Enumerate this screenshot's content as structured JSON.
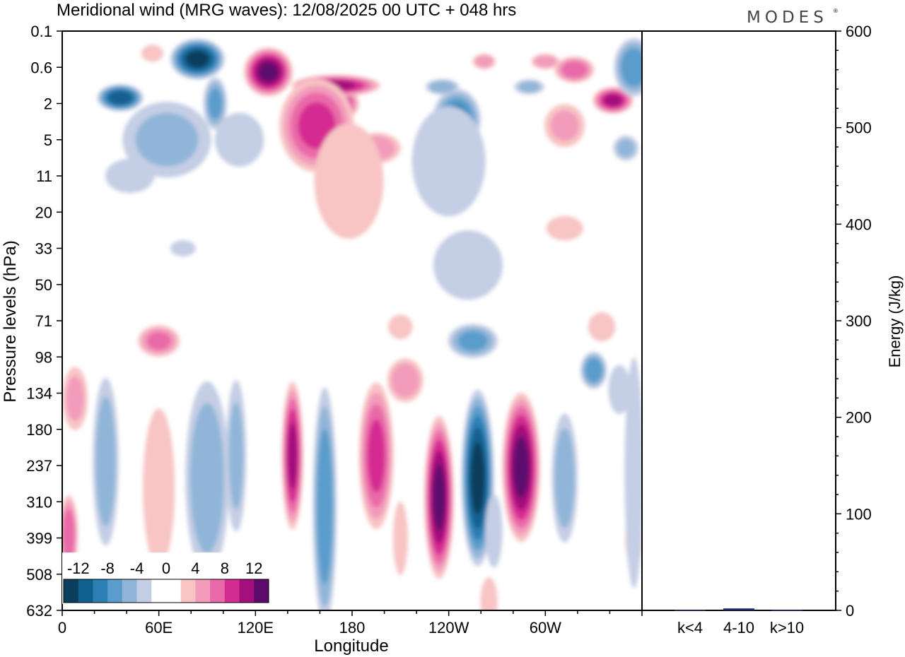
{
  "chart_data": {
    "type": "heatmap",
    "title": "Meridional wind (MRG waves):  12/08/2025  00 UTC  + 048 hrs",
    "logo": "MODES",
    "xlabel": "Longitude",
    "ylabel": "Pressure levels (hPa)",
    "x_ticks": [
      "0",
      "60E",
      "120E",
      "180",
      "120W",
      "60W"
    ],
    "x_tick_values": [
      0,
      60,
      120,
      180,
      240,
      300
    ],
    "xlim": [
      0,
      360
    ],
    "y_ticks": [
      "0.1",
      "0.6",
      "2",
      "5",
      "11",
      "20",
      "33",
      "50",
      "71",
      "98",
      "134",
      "180",
      "237",
      "310",
      "399",
      "508",
      "632"
    ],
    "colorbar": {
      "labels": [
        "-12",
        "-8",
        "-4",
        "0",
        "4",
        "8",
        "12"
      ],
      "levels": [
        -14,
        -12,
        -10,
        -8,
        -6,
        -4,
        -2,
        0,
        2,
        4,
        6,
        8,
        10,
        12,
        14
      ],
      "colors": [
        "#0b3d5c",
        "#12608f",
        "#2b7fb5",
        "#5a9ccb",
        "#90b5d8",
        "#c4cee4",
        "#ffffff",
        "#ffffff",
        "#f8c4c4",
        "#f29bbb",
        "#ea69a8",
        "#d52c92",
        "#a30f7b",
        "#5d0a6d"
      ]
    },
    "energy_panel": {
      "type": "bar",
      "ylabel": "Energy (J/kg)",
      "ylim": [
        0,
        600
      ],
      "y_ticks": [
        "0",
        "100",
        "200",
        "300",
        "400",
        "500",
        "600"
      ],
      "y_tick_values": [
        0,
        100,
        200,
        300,
        400,
        500,
        600
      ],
      "categories": [
        "k<4",
        "4-10",
        "k>10"
      ],
      "values": [
        0.5,
        2,
        0.5
      ],
      "bar_color": "#1b2a6b"
    },
    "wind_features": [
      {
        "lon": 84,
        "lev": 0.4,
        "v": -13,
        "w": 40,
        "h": 30
      },
      {
        "lon": 36,
        "lev": 1.65,
        "v": -12,
        "w": 34,
        "h": 20
      },
      {
        "lon": 56,
        "lev": 0.3,
        "v": 4,
        "w": 18,
        "h": 14
      },
      {
        "lon": 128,
        "lev": 0.7,
        "v": 13,
        "w": 36,
        "h": 36
      },
      {
        "lon": 165,
        "lev": 2.0,
        "v": 14,
        "w": 46,
        "h": 30
      },
      {
        "lon": 170,
        "lev": 1.1,
        "v": 11,
        "w": 66,
        "h": 16
      },
      {
        "lon": 158,
        "lev": 3.5,
        "v": 9,
        "w": 56,
        "h": 70
      },
      {
        "lon": 195,
        "lev": 6.0,
        "v": 6,
        "w": 38,
        "h": 24
      },
      {
        "lon": 178,
        "lev": 12.0,
        "v": 3,
        "w": 60,
        "h": 100
      },
      {
        "lon": 65,
        "lev": 5.0,
        "v": -5,
        "w": 70,
        "h": 60
      },
      {
        "lon": 95,
        "lev": 2.0,
        "v": -7,
        "w": 18,
        "h": 40
      },
      {
        "lon": 110,
        "lev": 5.0,
        "v": -4,
        "w": 40,
        "h": 44
      },
      {
        "lon": 245,
        "lev": 3.0,
        "v": -9,
        "w": 36,
        "h": 46
      },
      {
        "lon": 240,
        "lev": 8.0,
        "v": -4,
        "w": 60,
        "h": 90
      },
      {
        "lon": 236,
        "lev": 1.15,
        "v": -6,
        "w": 26,
        "h": 12
      },
      {
        "lon": 290,
        "lev": 1.15,
        "v": -5,
        "w": 24,
        "h": 12
      },
      {
        "lon": 318,
        "lev": 0.65,
        "v": 8,
        "w": 30,
        "h": 20
      },
      {
        "lon": 342,
        "lev": 1.8,
        "v": 11,
        "w": 30,
        "h": 20
      },
      {
        "lon": 355,
        "lev": 0.6,
        "v": -8,
        "w": 30,
        "h": 44
      },
      {
        "lon": 312,
        "lev": 3.5,
        "v": 5,
        "w": 32,
        "h": 34
      },
      {
        "lon": 350,
        "lev": 6.0,
        "v": -5,
        "w": 20,
        "h": 20
      },
      {
        "lon": 312,
        "lev": 25.0,
        "v": 4,
        "w": 30,
        "h": 20
      },
      {
        "lon": 262,
        "lev": 0.45,
        "v": 6,
        "w": 18,
        "h": 12
      },
      {
        "lon": 300,
        "lev": 0.45,
        "v": 6,
        "w": 22,
        "h": 12
      },
      {
        "lon": 255,
        "lev": 85.0,
        "v": -7,
        "w": 38,
        "h": 26
      },
      {
        "lon": 252,
        "lev": 40.0,
        "v": -3,
        "w": 60,
        "h": 60
      },
      {
        "lon": 210,
        "lev": 75.0,
        "v": 4,
        "w": 20,
        "h": 20
      },
      {
        "lon": 213,
        "lev": 120.0,
        "v": 6,
        "w": 28,
        "h": 34
      },
      {
        "lon": 60,
        "lev": 85.0,
        "v": 7,
        "w": 32,
        "h": 24
      },
      {
        "lon": 335,
        "lev": 75.0,
        "v": 4,
        "w": 22,
        "h": 24
      },
      {
        "lon": 330,
        "lev": 110.0,
        "v": -8,
        "w": 20,
        "h": 28
      },
      {
        "lon": 346,
        "lev": 130.0,
        "v": -4,
        "w": 18,
        "h": 40
      },
      {
        "lon": 8,
        "lev": 140.0,
        "v": 5,
        "w": 20,
        "h": 50
      },
      {
        "lon": 4,
        "lev": 390.0,
        "v": 8,
        "w": 14,
        "h": 60
      },
      {
        "lon": 27,
        "lev": 230.0,
        "v": -6,
        "w": 20,
        "h": 130
      },
      {
        "lon": 60,
        "lev": 280.0,
        "v": 4,
        "w": 26,
        "h": 130
      },
      {
        "lon": 90,
        "lev": 260.0,
        "v": -6,
        "w": 34,
        "h": 150
      },
      {
        "lon": 108,
        "lev": 220.0,
        "v": -5,
        "w": 16,
        "h": 120
      },
      {
        "lon": 143,
        "lev": 220.0,
        "v": 11,
        "w": 16,
        "h": 110
      },
      {
        "lon": 163,
        "lev": 320.0,
        "v": -8,
        "w": 18,
        "h": 180
      },
      {
        "lon": 195,
        "lev": 220.0,
        "v": 9,
        "w": 26,
        "h": 110
      },
      {
        "lon": 234,
        "lev": 300.0,
        "v": 13,
        "w": 22,
        "h": 120
      },
      {
        "lon": 258,
        "lev": 260.0,
        "v": -13,
        "w": 24,
        "h": 130
      },
      {
        "lon": 285,
        "lev": 240.0,
        "v": 13,
        "w": 28,
        "h": 110
      },
      {
        "lon": 312,
        "lev": 260.0,
        "v": -6,
        "w": 20,
        "h": 100
      },
      {
        "lon": 355,
        "lev": 400.0,
        "v": 4,
        "w": 14,
        "h": 50
      },
      {
        "lon": 355,
        "lev": 250.0,
        "v": -3,
        "w": 16,
        "h": 200
      },
      {
        "lon": 268,
        "lev": 380.0,
        "v": -4,
        "w": 14,
        "h": 60
      },
      {
        "lon": 210,
        "lev": 400.0,
        "v": 4,
        "w": 12,
        "h": 60
      },
      {
        "lon": 265,
        "lev": 600.0,
        "v": 4,
        "w": 14,
        "h": 40
      },
      {
        "lon": 75,
        "lev": 33.0,
        "v": -3,
        "w": 22,
        "h": 14
      },
      {
        "lon": 42,
        "lev": 11.0,
        "v": -4,
        "w": 40,
        "h": 28
      }
    ]
  }
}
